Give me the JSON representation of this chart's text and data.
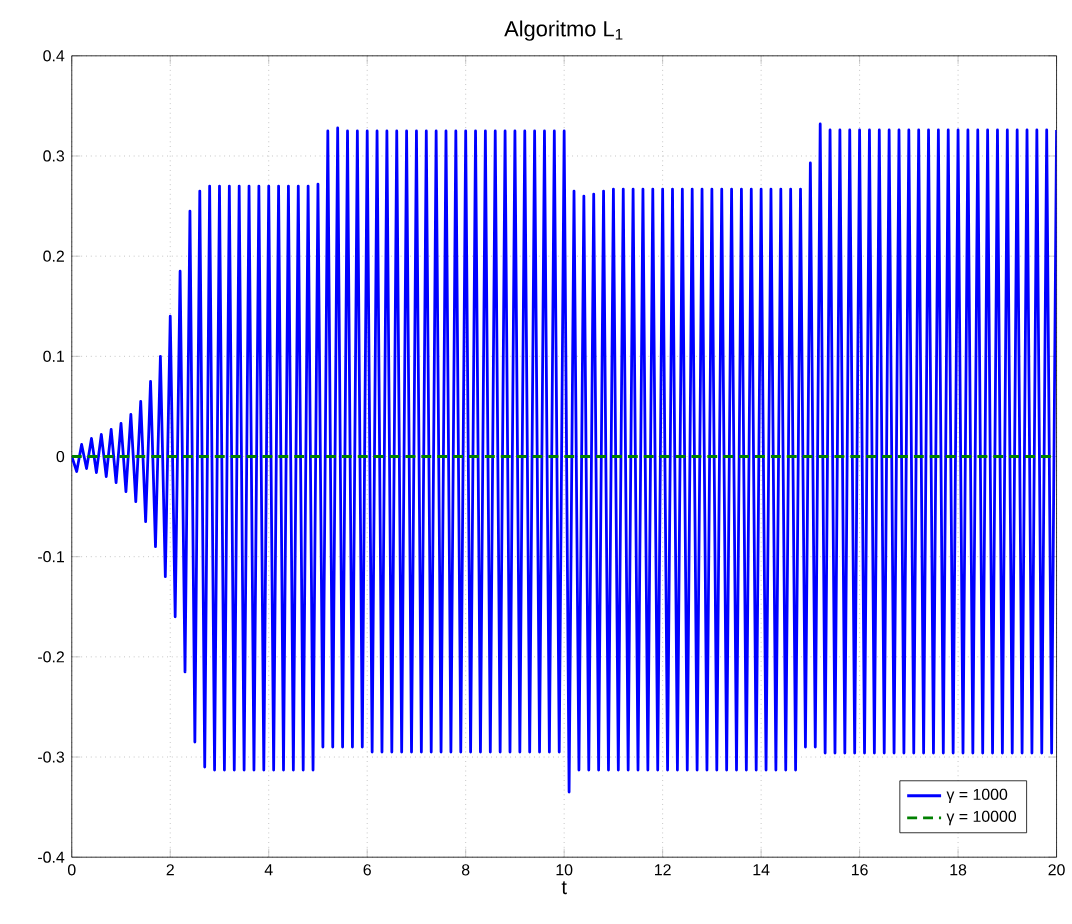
{
  "chart_data": {
    "type": "line",
    "title": "Algoritmo L$_{1}$",
    "xlabel": "t",
    "x": [
      0,
      0.1,
      0.2,
      0.3,
      0.4,
      0.5,
      0.6,
      0.7,
      0.8,
      0.9,
      1,
      1.1,
      1.2,
      1.3,
      1.4,
      1.5,
      1.6,
      1.7,
      1.8,
      1.9,
      2,
      2.1,
      2.2,
      2.3,
      2.4,
      2.5,
      2.6,
      2.7,
      2.8,
      2.9,
      3,
      3.1,
      3.2,
      3.3,
      3.4,
      3.5,
      3.6,
      3.7,
      3.8,
      3.9,
      4,
      4.1,
      4.2,
      4.3,
      4.4,
      4.5,
      4.6,
      4.7,
      4.8,
      4.9,
      5,
      5.1,
      5.2,
      5.3,
      5.4,
      5.5,
      5.6,
      5.7,
      5.8,
      5.9,
      6,
      6.1,
      6.2,
      6.3,
      6.4,
      6.5,
      6.6,
      6.7,
      6.8,
      6.9,
      7,
      7.1,
      7.2,
      7.3,
      7.4,
      7.5,
      7.6,
      7.7,
      7.8,
      7.9,
      8,
      8.1,
      8.2,
      8.3,
      8.4,
      8.5,
      8.6,
      8.7,
      8.8,
      8.9,
      9,
      9.1,
      9.2,
      9.3,
      9.4,
      9.5,
      9.6,
      9.7,
      9.8,
      9.9,
      10,
      10.1,
      10.2,
      10.3,
      10.4,
      10.5,
      10.6,
      10.7,
      10.8,
      10.9,
      11,
      11.1,
      11.2,
      11.3,
      11.4,
      11.5,
      11.6,
      11.7,
      11.8,
      11.9,
      12,
      12.1,
      12.2,
      12.3,
      12.4,
      12.5,
      12.6,
      12.7,
      12.8,
      12.9,
      13,
      13.1,
      13.2,
      13.3,
      13.4,
      13.5,
      13.6,
      13.7,
      13.8,
      13.9,
      14,
      14.1,
      14.2,
      14.3,
      14.4,
      14.5,
      14.6,
      14.7,
      14.8,
      14.9,
      15,
      15.1,
      15.2,
      15.3,
      15.4,
      15.5,
      15.6,
      15.7,
      15.8,
      15.9,
      16,
      16.1,
      16.2,
      16.3,
      16.4,
      16.5,
      16.6,
      16.7,
      16.8,
      16.9,
      17,
      17.1,
      17.2,
      17.3,
      17.4,
      17.5,
      17.6,
      17.7,
      17.8,
      17.9,
      18,
      18.1,
      18.2,
      18.3,
      18.4,
      18.5,
      18.6,
      18.7,
      18.8,
      18.9,
      19,
      19.1,
      19.2,
      19.3,
      19.4,
      19.5,
      19.6,
      19.7,
      19.8,
      19.9,
      20
    ],
    "series": [
      {
        "name": "γ = 1000",
        "color": "#0000ff",
        "line_style": "solid",
        "values": [
          0,
          -0.015,
          0.012,
          -0.012,
          0.018,
          -0.016,
          0.022,
          -0.02,
          0.027,
          -0.026,
          0.033,
          -0.035,
          0.042,
          -0.045,
          0.055,
          -0.065,
          0.075,
          -0.09,
          0.1,
          -0.12,
          0.14,
          -0.16,
          0.185,
          -0.215,
          0.245,
          -0.285,
          0.265,
          -0.31,
          0.27,
          -0.313,
          0.27,
          -0.313,
          0.27,
          -0.313,
          0.27,
          -0.313,
          0.27,
          -0.313,
          0.27,
          -0.313,
          0.27,
          -0.313,
          0.27,
          -0.313,
          0.27,
          -0.313,
          0.27,
          -0.313,
          0.27,
          -0.313,
          0.272,
          -0.29,
          0.325,
          -0.29,
          0.328,
          -0.29,
          0.325,
          -0.29,
          0.325,
          -0.29,
          0.325,
          -0.295,
          0.325,
          -0.295,
          0.325,
          -0.295,
          0.325,
          -0.295,
          0.325,
          -0.295,
          0.325,
          -0.295,
          0.325,
          -0.295,
          0.325,
          -0.295,
          0.325,
          -0.295,
          0.325,
          -0.295,
          0.325,
          -0.295,
          0.325,
          -0.295,
          0.325,
          -0.295,
          0.325,
          -0.295,
          0.325,
          -0.295,
          0.325,
          -0.295,
          0.325,
          -0.295,
          0.325,
          -0.295,
          0.325,
          -0.295,
          0.325,
          -0.295,
          0.325,
          -0.335,
          0.265,
          -0.313,
          0.26,
          -0.313,
          0.262,
          -0.313,
          0.265,
          -0.313,
          0.267,
          -0.313,
          0.267,
          -0.313,
          0.267,
          -0.313,
          0.267,
          -0.313,
          0.267,
          -0.313,
          0.267,
          -0.313,
          0.267,
          -0.313,
          0.267,
          -0.313,
          0.267,
          -0.313,
          0.267,
          -0.313,
          0.267,
          -0.313,
          0.267,
          -0.313,
          0.267,
          -0.313,
          0.267,
          -0.313,
          0.267,
          -0.313,
          0.267,
          -0.313,
          0.267,
          -0.313,
          0.267,
          -0.313,
          0.267,
          -0.313,
          0.267,
          -0.29,
          0.293,
          -0.29,
          0.332,
          -0.296,
          0.326,
          -0.296,
          0.326,
          -0.296,
          0.326,
          -0.296,
          0.326,
          -0.296,
          0.326,
          -0.296,
          0.326,
          -0.296,
          0.326,
          -0.296,
          0.326,
          -0.296,
          0.326,
          -0.296,
          0.326,
          -0.296,
          0.326,
          -0.296,
          0.326,
          -0.296,
          0.326,
          -0.296,
          0.326,
          -0.296,
          0.326,
          -0.296,
          0.326,
          -0.296,
          0.326,
          -0.296,
          0.326,
          -0.296,
          0.326,
          -0.296,
          0.326,
          -0.296,
          0.326,
          -0.296,
          0.326,
          -0.296,
          0.326,
          -0.296,
          0.326
        ]
      },
      {
        "name": "γ = 10000",
        "color": "#008000",
        "line_style": "dashed",
        "x": [
          0,
          20
        ],
        "values": [
          0,
          0
        ]
      }
    ],
    "xlim": [
      0,
      20
    ],
    "ylim": [
      -0.4,
      0.4
    ],
    "xticks": [
      0,
      2,
      4,
      6,
      8,
      10,
      12,
      14,
      16,
      18,
      20
    ],
    "yticks": [
      -0.4,
      -0.3,
      -0.2,
      -0.1,
      0,
      0.1,
      0.2,
      0.3,
      0.4
    ],
    "grid": true,
    "legend": "bottom right",
    "marker": "none"
  }
}
